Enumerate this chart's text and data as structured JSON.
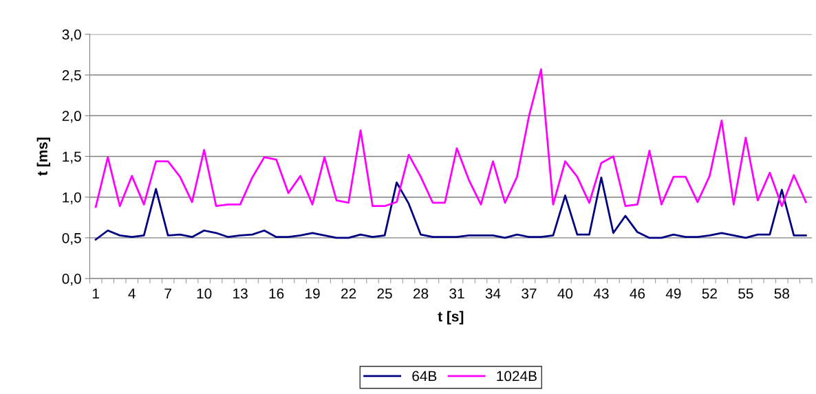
{
  "chart_data": {
    "type": "line",
    "xlabel": "t [s]",
    "ylabel": "t [ms]",
    "categories": [
      "1",
      null,
      null,
      "4",
      null,
      null,
      "7",
      null,
      null,
      "10",
      null,
      null,
      "13",
      null,
      null,
      "16",
      null,
      null,
      "19",
      null,
      null,
      "22",
      null,
      null,
      "25",
      null,
      null,
      "28",
      null,
      null,
      "31",
      null,
      null,
      "34",
      null,
      null,
      "37",
      null,
      null,
      "40",
      null,
      null,
      "43",
      null,
      null,
      "46",
      null,
      null,
      "49",
      null,
      null,
      "52",
      null,
      null,
      "55",
      null,
      null,
      "58",
      null,
      null
    ],
    "series": [
      {
        "name": "64B",
        "color": "#000080",
        "values": [
          0.48,
          0.59,
          0.53,
          0.51,
          0.53,
          1.1,
          0.53,
          0.54,
          0.51,
          0.59,
          0.56,
          0.51,
          0.53,
          0.54,
          0.59,
          0.51,
          0.51,
          0.53,
          0.56,
          0.53,
          0.5,
          0.5,
          0.54,
          0.51,
          0.53,
          1.18,
          0.92,
          0.54,
          0.51,
          0.51,
          0.51,
          0.53,
          0.53,
          0.53,
          0.5,
          0.54,
          0.51,
          0.51,
          0.53,
          1.02,
          0.54,
          0.54,
          1.24,
          0.56,
          0.77,
          0.57,
          0.5,
          0.5,
          0.54,
          0.51,
          0.51,
          0.53,
          0.56,
          0.53,
          0.5,
          0.54,
          0.54,
          1.09,
          0.53,
          0.53
        ]
      },
      {
        "name": "1024B",
        "color": "#ff00ff",
        "values": [
          0.88,
          1.49,
          0.89,
          1.26,
          0.91,
          1.44,
          1.44,
          1.25,
          0.94,
          1.58,
          0.89,
          0.91,
          0.91,
          1.24,
          1.49,
          1.46,
          1.05,
          1.26,
          0.91,
          1.49,
          0.96,
          0.93,
          1.82,
          0.89,
          0.89,
          0.94,
          1.52,
          1.25,
          0.93,
          0.93,
          1.6,
          1.21,
          0.91,
          1.44,
          0.93,
          1.25,
          2.0,
          2.57,
          0.91,
          1.44,
          1.25,
          0.93,
          1.42,
          1.5,
          0.89,
          0.91,
          1.57,
          0.91,
          1.25,
          1.25,
          0.94,
          1.26,
          1.94,
          0.91,
          1.73,
          0.96,
          1.3,
          0.89,
          1.27,
          0.94
        ]
      }
    ],
    "ylim": [
      0,
      3
    ],
    "yticks": [
      {
        "value": 0,
        "label": "0,0"
      },
      {
        "value": 0.5,
        "label": "0,5"
      },
      {
        "value": 1,
        "label": "1,0"
      },
      {
        "value": 1.5,
        "label": "1,5"
      },
      {
        "value": 2,
        "label": "2,0"
      },
      {
        "value": 2.5,
        "label": "2,5"
      },
      {
        "value": 3,
        "label": "3,0"
      }
    ],
    "grid": "y",
    "legend": "bottom",
    "marker": "none",
    "line_style": "solid"
  }
}
